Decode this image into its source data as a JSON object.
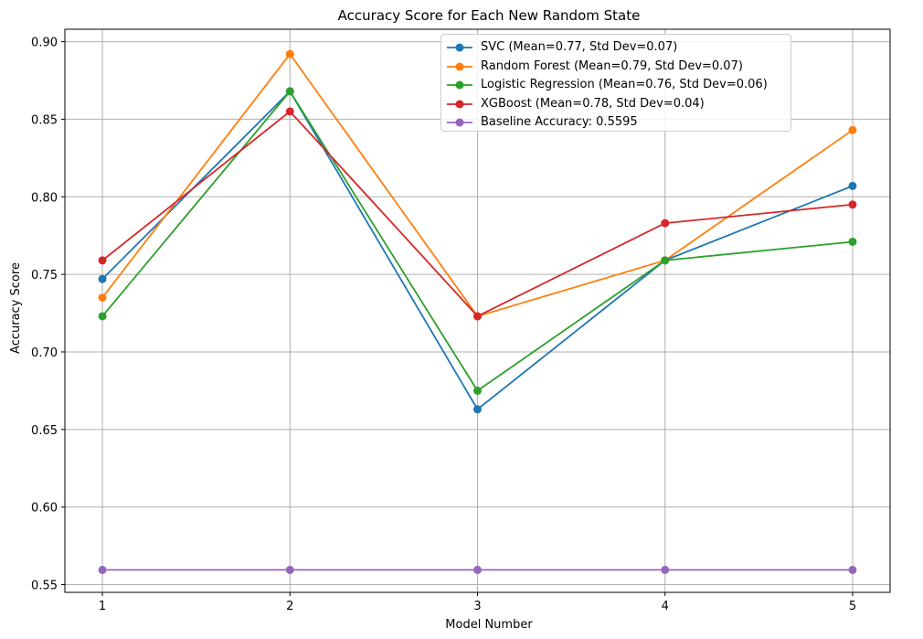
{
  "chart_data": {
    "type": "line",
    "title": "Accuracy Score for Each New Random State",
    "xlabel": "Model Number",
    "ylabel": "Accuracy Score",
    "x": [
      1,
      2,
      3,
      4,
      5
    ],
    "xticks": [
      "1",
      "2",
      "3",
      "4",
      "5"
    ],
    "xlim": [
      0.8,
      5.2
    ],
    "ylim": [
      0.545,
      0.908
    ],
    "yticks": [
      "0.55",
      "0.60",
      "0.65",
      "0.70",
      "0.75",
      "0.80",
      "0.85",
      "0.90"
    ],
    "grid": true,
    "legend_position": "top-right",
    "series": [
      {
        "name": "SVC (Mean=0.77, Std Dev=0.07)",
        "color": "#1f77b4",
        "marker": "circle",
        "values": [
          0.747,
          0.868,
          0.663,
          0.759,
          0.807
        ]
      },
      {
        "name": "Random Forest (Mean=0.79, Std Dev=0.07)",
        "color": "#ff7f0e",
        "marker": "circle",
        "values": [
          0.735,
          0.892,
          0.723,
          0.759,
          0.843
        ]
      },
      {
        "name": "Logistic Regression (Mean=0.76, Std Dev=0.06)",
        "color": "#2ca02c",
        "marker": "circle",
        "values": [
          0.723,
          0.868,
          0.675,
          0.759,
          0.771
        ]
      },
      {
        "name": "XGBoost (Mean=0.78, Std Dev=0.04)",
        "color": "#d62728",
        "marker": "circle",
        "values": [
          0.759,
          0.855,
          0.723,
          0.783,
          0.795
        ]
      },
      {
        "name": "Baseline Accuracy: 0.5595",
        "color": "#9467bd",
        "marker": "circle",
        "values": [
          0.5595,
          0.5595,
          0.5595,
          0.5595,
          0.5595
        ]
      }
    ]
  }
}
